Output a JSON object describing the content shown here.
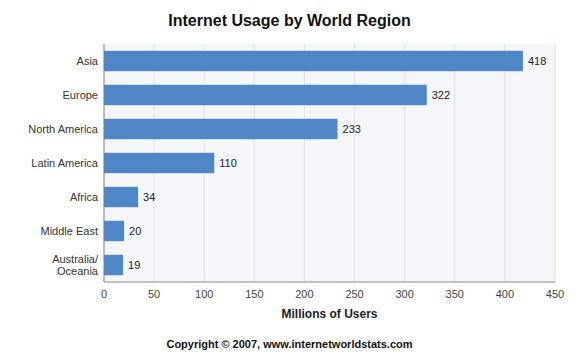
{
  "chart_data": {
    "type": "bar",
    "orientation": "horizontal",
    "title": "Internet Usage by World Region",
    "categories": [
      "Asia",
      "Europe",
      "North America",
      "Latin America",
      "Africa",
      "Middle East",
      "Australia/\nOceania"
    ],
    "values": [
      418,
      322,
      233,
      110,
      34,
      20,
      19
    ],
    "color": "#4F86C6",
    "xlabel": "Millions of Users",
    "annotations": [
      "Copyright © 2007, www.internetworldstats.com"
    ],
    "xlim": [
      0,
      450
    ],
    "xticks": [
      0,
      50,
      100,
      150,
      200,
      250,
      300,
      350,
      400,
      450
    ],
    "grid": true,
    "data_labels": true
  }
}
